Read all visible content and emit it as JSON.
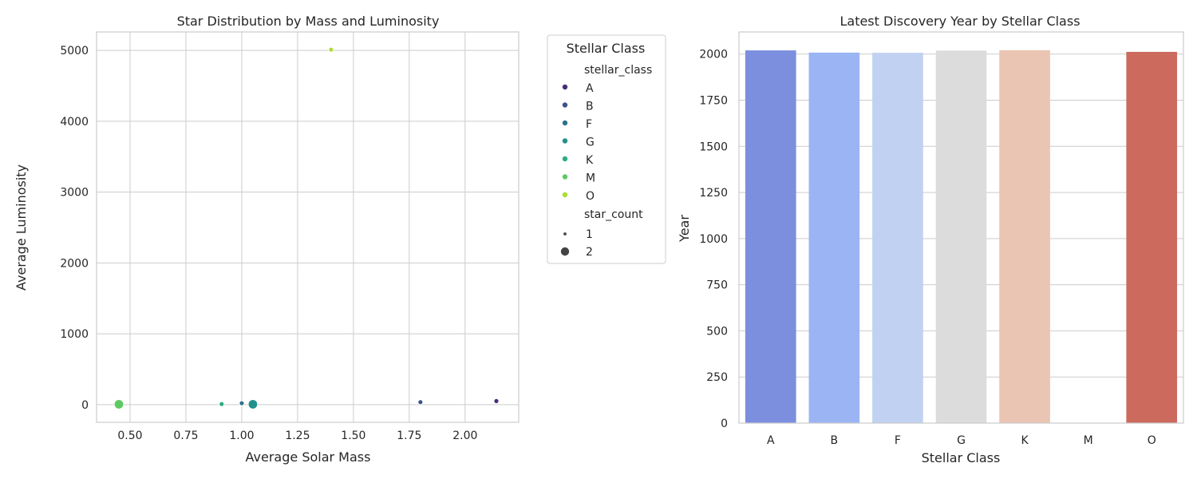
{
  "chart_data": [
    {
      "type": "scatter",
      "title": "Star Distribution by Mass and Luminosity",
      "xlabel": "Average Solar Mass",
      "ylabel": "Average Luminosity",
      "xlim": [
        0.35,
        2.24
      ],
      "ylim": [
        -250,
        5260
      ],
      "xticks": [
        0.5,
        0.75,
        1.0,
        1.25,
        1.5,
        1.75,
        2.0
      ],
      "xtick_labels": [
        "0.50",
        "0.75",
        "1.00",
        "1.25",
        "1.50",
        "1.75",
        "2.00"
      ],
      "yticks": [
        0,
        1000,
        2000,
        3000,
        4000,
        5000
      ],
      "ytick_labels": [
        "0",
        "1000",
        "2000",
        "3000",
        "4000",
        "5000"
      ],
      "grid": true,
      "points": [
        {
          "stellar_class": "A",
          "x": 2.14,
          "y": 50,
          "star_count": 1
        },
        {
          "stellar_class": "B",
          "x": 1.8,
          "y": 35,
          "star_count": 1
        },
        {
          "stellar_class": "F",
          "x": 1.0,
          "y": 20,
          "star_count": 1
        },
        {
          "stellar_class": "G",
          "x": 1.05,
          "y": 5,
          "star_count": 2
        },
        {
          "stellar_class": "K",
          "x": 0.91,
          "y": 8,
          "star_count": 1
        },
        {
          "stellar_class": "M",
          "x": 0.45,
          "y": 4,
          "star_count": 2
        },
        {
          "stellar_class": "O",
          "x": 1.4,
          "y": 5010,
          "star_count": 1
        }
      ],
      "colors": {
        "A": "#472d7b",
        "B": "#3b528b",
        "F": "#2c728e",
        "G": "#21918c",
        "K": "#28ae80",
        "M": "#5ec962",
        "O": "#addc30"
      },
      "legend": {
        "title": "Stellar Class",
        "hue_title": "stellar_class",
        "hue_entries": [
          "A",
          "B",
          "F",
          "G",
          "K",
          "M",
          "O"
        ],
        "size_title": "star_count",
        "size_entries": [
          "1",
          "2"
        ],
        "placement": "outside right"
      }
    },
    {
      "type": "bar",
      "title": "Latest Discovery Year by Stellar Class",
      "xlabel": "Stellar Class",
      "ylabel": "Year",
      "categories": [
        "A",
        "B",
        "F",
        "G",
        "K",
        "M",
        "O"
      ],
      "values": [
        2020,
        2008,
        2007,
        2019,
        2021,
        0,
        2012
      ],
      "colors": [
        "#7b8fde",
        "#9bb4f3",
        "#c0d1f1",
        "#dcdcdc",
        "#ebc5b3",
        "#e9a490",
        "#cc6a5e"
      ],
      "ylim": [
        0,
        2120
      ],
      "yticks": [
        0,
        250,
        500,
        750,
        1000,
        1250,
        1500,
        1750,
        2000
      ],
      "ytick_labels": [
        "0",
        "250",
        "500",
        "750",
        "1000",
        "1250",
        "1500",
        "1750",
        "2000"
      ],
      "grid": true
    }
  ]
}
